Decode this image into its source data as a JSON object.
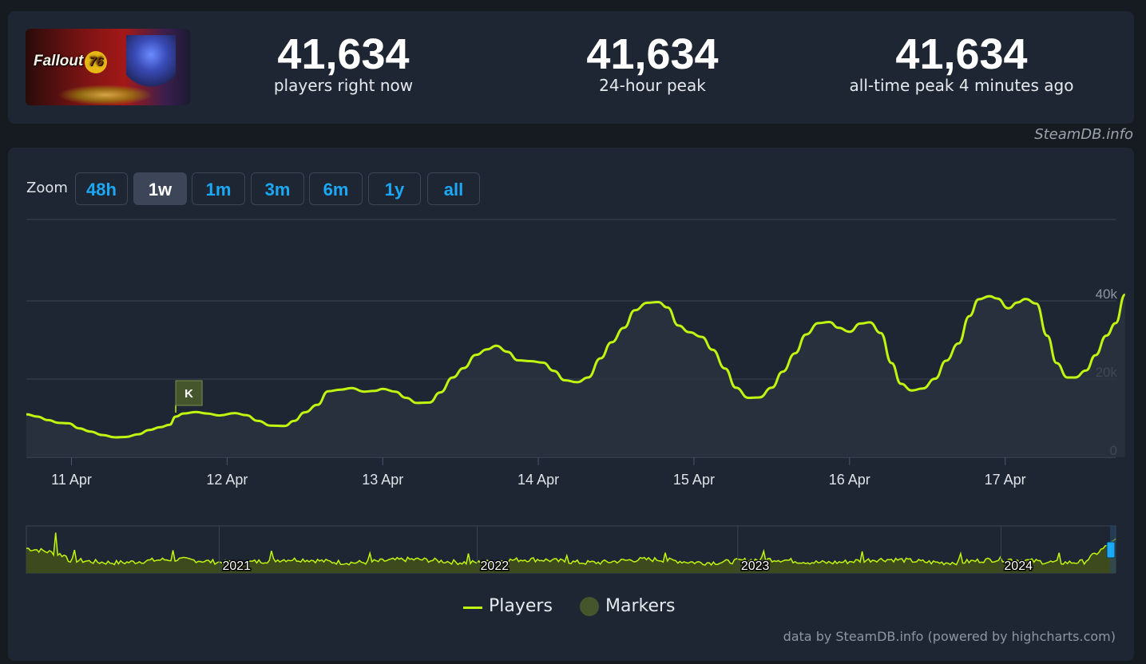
{
  "game": {
    "title": "Fallout",
    "title_number": "76"
  },
  "stats": [
    {
      "value": "41,634",
      "label": "players right now"
    },
    {
      "value": "41,634",
      "label": "24-hour peak"
    },
    {
      "value": "41,634",
      "label": "all-time peak 4 minutes ago"
    }
  ],
  "credit": "SteamDB.info",
  "zoom": {
    "label": "Zoom",
    "buttons": [
      "48h",
      "1w",
      "1m",
      "3m",
      "6m",
      "1y",
      "all"
    ],
    "active": "1w"
  },
  "legend": {
    "players": "Players",
    "markers": "Markers"
  },
  "footer": "data by SteamDB.info (powered by highcharts.com)",
  "colors": {
    "line": "#bff50f",
    "marker": "#45562d",
    "accent": "#1ba9f5",
    "panel": "#1e2633",
    "background": "#161b22"
  },
  "chart_data": {
    "type": "line",
    "series": [
      {
        "name": "Players"
      }
    ],
    "x_ticks": [
      "11 Apr",
      "12 Apr",
      "13 Apr",
      "14 Apr",
      "15 Apr",
      "16 Apr",
      "17 Apr"
    ],
    "y_ticks": [
      "0",
      "20k",
      "40k"
    ],
    "ylim": [
      0,
      40000
    ],
    "x_range_days": [
      10.71,
      17.71
    ],
    "points": [
      [
        10.71,
        11000
      ],
      [
        10.78,
        10400
      ],
      [
        10.85,
        9500
      ],
      [
        10.92,
        8800
      ],
      [
        10.98,
        8700
      ],
      [
        11.05,
        7400
      ],
      [
        11.12,
        6600
      ],
      [
        11.2,
        5700
      ],
      [
        11.28,
        5100
      ],
      [
        11.35,
        5200
      ],
      [
        11.43,
        5900
      ],
      [
        11.5,
        7000
      ],
      [
        11.57,
        7700
      ],
      [
        11.63,
        8300
      ],
      [
        11.67,
        10400
      ],
      [
        11.72,
        11200
      ],
      [
        11.8,
        11600
      ],
      [
        11.87,
        11200
      ],
      [
        11.95,
        10700
      ],
      [
        12.05,
        11300
      ],
      [
        12.12,
        10800
      ],
      [
        12.2,
        9300
      ],
      [
        12.28,
        8100
      ],
      [
        12.37,
        8000
      ],
      [
        12.43,
        9300
      ],
      [
        12.5,
        11500
      ],
      [
        12.58,
        13400
      ],
      [
        12.65,
        16900
      ],
      [
        12.73,
        17300
      ],
      [
        12.8,
        17700
      ],
      [
        12.88,
        16800
      ],
      [
        12.95,
        17000
      ],
      [
        13.0,
        17500
      ],
      [
        13.08,
        16800
      ],
      [
        13.15,
        15200
      ],
      [
        13.22,
        13900
      ],
      [
        13.3,
        14000
      ],
      [
        13.37,
        16600
      ],
      [
        13.45,
        20400
      ],
      [
        13.52,
        22800
      ],
      [
        13.6,
        26200
      ],
      [
        13.67,
        27600
      ],
      [
        13.73,
        28500
      ],
      [
        13.8,
        27000
      ],
      [
        13.87,
        24800
      ],
      [
        13.95,
        24600
      ],
      [
        14.03,
        24200
      ],
      [
        14.1,
        22100
      ],
      [
        14.17,
        19700
      ],
      [
        14.25,
        19200
      ],
      [
        14.32,
        20400
      ],
      [
        14.4,
        25300
      ],
      [
        14.47,
        29400
      ],
      [
        14.55,
        33100
      ],
      [
        14.62,
        37600
      ],
      [
        14.7,
        39500
      ],
      [
        14.77,
        39700
      ],
      [
        14.83,
        38300
      ],
      [
        14.9,
        33700
      ],
      [
        14.97,
        32000
      ],
      [
        15.05,
        30800
      ],
      [
        15.12,
        27500
      ],
      [
        15.2,
        22700
      ],
      [
        15.27,
        17800
      ],
      [
        15.35,
        15200
      ],
      [
        15.42,
        15300
      ],
      [
        15.5,
        17800
      ],
      [
        15.57,
        21900
      ],
      [
        15.65,
        26600
      ],
      [
        15.72,
        31400
      ],
      [
        15.8,
        34300
      ],
      [
        15.87,
        34600
      ],
      [
        15.93,
        33100
      ],
      [
        16.0,
        32100
      ],
      [
        16.07,
        34200
      ],
      [
        16.13,
        34500
      ],
      [
        16.2,
        31800
      ],
      [
        16.27,
        24100
      ],
      [
        16.33,
        18800
      ],
      [
        16.4,
        17100
      ],
      [
        16.47,
        17600
      ],
      [
        16.55,
        20100
      ],
      [
        16.62,
        24700
      ],
      [
        16.7,
        29100
      ],
      [
        16.77,
        36100
      ],
      [
        16.83,
        40400
      ],
      [
        16.9,
        41200
      ],
      [
        16.95,
        40600
      ],
      [
        17.02,
        38100
      ],
      [
        17.08,
        39600
      ],
      [
        17.13,
        40500
      ],
      [
        17.2,
        39300
      ],
      [
        17.27,
        31100
      ],
      [
        17.33,
        24100
      ],
      [
        17.4,
        20400
      ],
      [
        17.45,
        20400
      ],
      [
        17.52,
        22200
      ],
      [
        17.58,
        26100
      ],
      [
        17.65,
        31100
      ],
      [
        17.71,
        34300
      ],
      [
        17.77,
        41600
      ]
    ],
    "markers": [
      {
        "label": "K",
        "day": 11.67
      }
    ],
    "navigator": {
      "year_labels": [
        "2021",
        "2022",
        "2023",
        "2024"
      ],
      "x_range": [
        2020.1,
        2024.28
      ],
      "year_starts": [
        2020.84,
        2021.83,
        2022.83,
        2023.84
      ]
    }
  }
}
